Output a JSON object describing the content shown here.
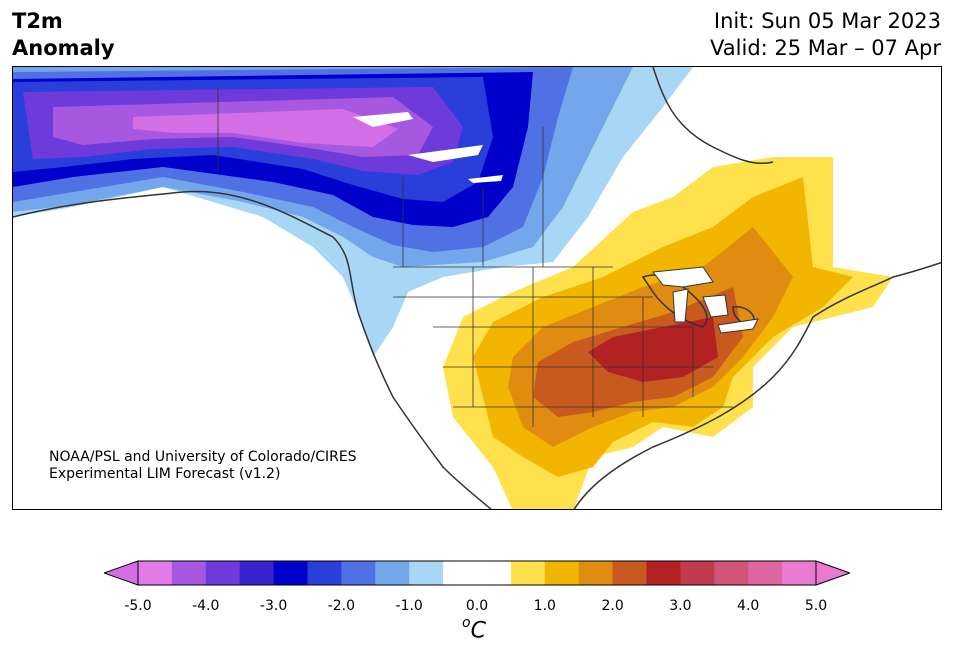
{
  "header": {
    "title_line1": "T2m",
    "title_line2": "Anomaly",
    "init": "Init: Sun 05 Mar 2023",
    "valid": "Valid: 25 Mar – 07 Apr"
  },
  "credit": {
    "line1": "NOAA/PSL and University of Colorado/CIRES",
    "line2": "Experimental LIM Forecast (v1.2)"
  },
  "colorbar": {
    "unit_base": "C",
    "unit_sup": "o",
    "tick_labels": [
      "-5.0",
      "-4.0",
      "-3.0",
      "-2.0",
      "-1.0",
      "0.0",
      "1.0",
      "2.0",
      "3.0",
      "4.0",
      "5.0"
    ],
    "colors": [
      "#e17be8",
      "#a659e0",
      "#6e3ad9",
      "#3a22d1",
      "#0000cc",
      "#2a3fd9",
      "#4f71e3",
      "#74a6ec",
      "#a8d6f5",
      "#ffffff",
      "#ffffff",
      "#ffe04d",
      "#f2b600",
      "#e08c10",
      "#c95a1e",
      "#b22222",
      "#c23a4e",
      "#d05578",
      "#dd66a0",
      "#ea7ad0"
    ],
    "under_color": "#d66de6",
    "over_color": "#ea7ad0"
  },
  "map": {
    "region": "North America",
    "anomaly_colors": {
      "cold_core": "#d46ee6",
      "cold_strong": "#6e3ad9",
      "cold_mid": "#0000cc",
      "cold_light": "#4f71e3",
      "cold_weak": "#74a6ec",
      "cold_faint": "#a8d6f5",
      "warm_faint": "#ffe04d",
      "warm_light": "#f2b600",
      "warm_mid": "#e08c10",
      "warm_strong": "#c95a1e",
      "warm_core": "#b22222"
    }
  }
}
